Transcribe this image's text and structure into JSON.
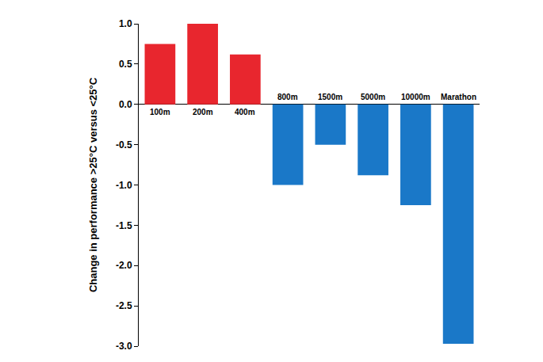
{
  "chart_data": {
    "type": "bar",
    "y_label": "Change in performance >25°C versus <25°C",
    "categories": [
      "100m",
      "200m",
      "400m",
      "800m",
      "1500m",
      "5000m",
      "10000m",
      "Marathon"
    ],
    "values": [
      0.75,
      1.0,
      0.62,
      -1.0,
      -0.5,
      -0.88,
      -1.25,
      -2.97
    ],
    "colors": [
      "#e8262e",
      "#e8262e",
      "#e8262e",
      "#1a78c8",
      "#1a78c8",
      "#1a78c8",
      "#1a78c8",
      "#1a78c8"
    ],
    "ylim": [
      -3.0,
      1.0
    ],
    "yticks": [
      {
        "value": 1.0,
        "label": "1.0"
      },
      0.5,
      {
        "value": 0.0,
        "label": "0.0"
      },
      -0.5,
      {
        "value": -1.0,
        "label": "-1.0"
      },
      -1.5,
      {
        "value": -2.0,
        "label": "-2.0"
      },
      -2.5,
      {
        "value": -3.0,
        "label": "-3.0"
      }
    ],
    "grid": false
  }
}
